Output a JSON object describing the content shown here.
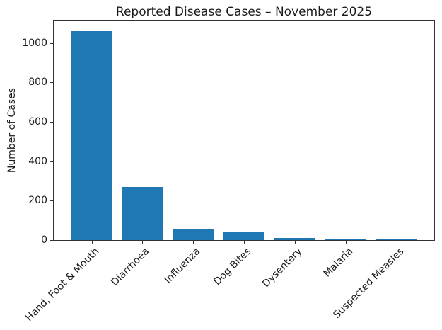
{
  "chart_data": {
    "type": "bar",
    "title": "Reported Disease Cases – November 2025",
    "xlabel": "",
    "ylabel": "Number of Cases",
    "categories": [
      "Hand, Foot & Mouth",
      "Diarrhoea",
      "Influenza",
      "Dog Bites",
      "Dysentery",
      "Malaria",
      "Suspected Measles"
    ],
    "values": [
      1060,
      270,
      56,
      45,
      10,
      4,
      3
    ],
    "ylim": [
      0,
      1113
    ],
    "yticks": [
      0,
      200,
      400,
      600,
      800,
      1000
    ],
    "bar_color": "#1f77b4",
    "grid": false,
    "legend_position": "none"
  }
}
